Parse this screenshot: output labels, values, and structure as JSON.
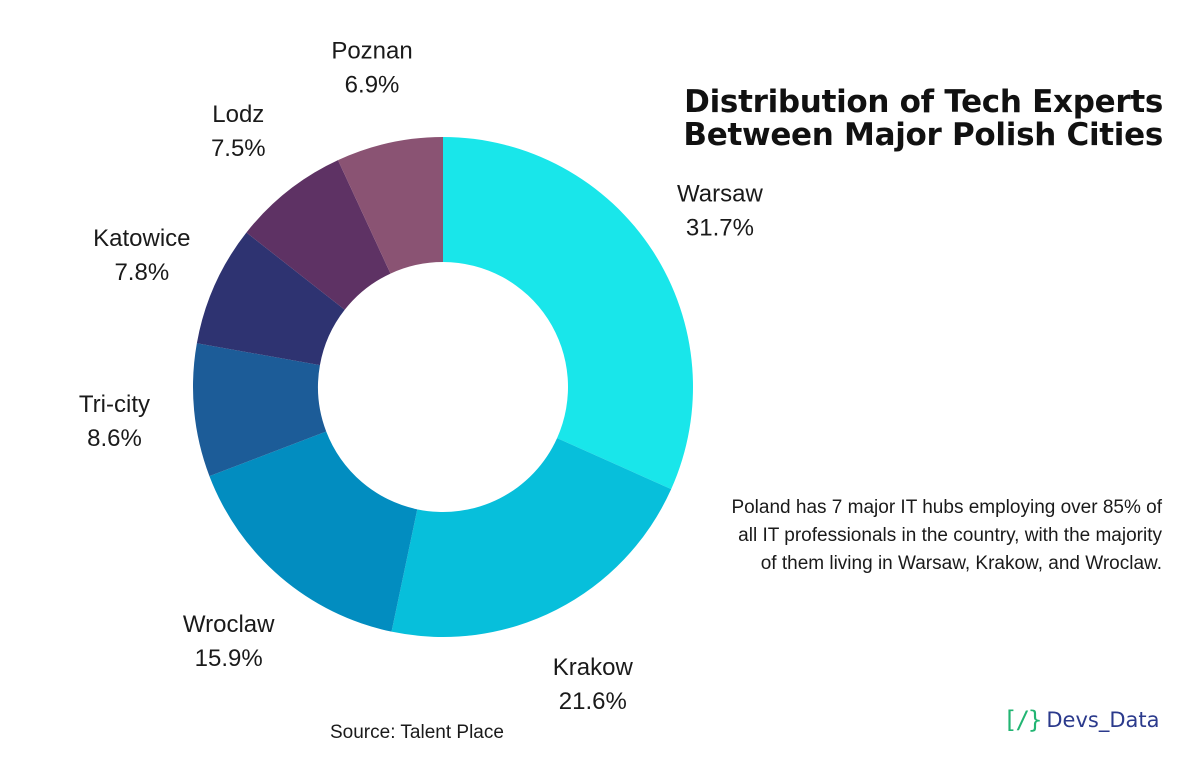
{
  "chart_data": {
    "type": "pie",
    "style": "donut",
    "title": "Distribution of Tech Experts Between Major Polish Cities",
    "slices": [
      {
        "label": "Warsaw",
        "value_text": "31.7%",
        "value": 31.7,
        "color": "#19E6EA"
      },
      {
        "label": "Krakow",
        "value_text": "21.6%",
        "value": 21.6,
        "color": "#07BFDB"
      },
      {
        "label": "Wroclaw",
        "value_text": "15.9%",
        "value": 15.9,
        "color": "#028DC0"
      },
      {
        "label": "Tri-city",
        "value_text": "8.6%",
        "value": 8.6,
        "color": "#1C5C98"
      },
      {
        "label": "Katowice",
        "value_text": "7.8%",
        "value": 7.8,
        "color": "#2E3371"
      },
      {
        "label": "Lodz",
        "value_text": "7.5%",
        "value": 7.5,
        "color": "#5E3264"
      },
      {
        "label": "Poznan",
        "value_text": "6.9%",
        "value": 6.9,
        "color": "#8A5373"
      }
    ],
    "legend": "none",
    "labels_position": "outside"
  },
  "title": {
    "line1": "Distribution of Tech Experts",
    "line2": "Between Major Polish Cities"
  },
  "note": "Poland has 7 major IT hubs employing over 85% of all IT professionals in the country, with the majority of them living in Warsaw, Krakow, and Wroclaw.",
  "source": "Source: Talent Place",
  "logo": {
    "mark": "[/}",
    "text": "Devs_Data",
    "mark_color": "#22B573",
    "text_color": "#2B3A8C"
  }
}
